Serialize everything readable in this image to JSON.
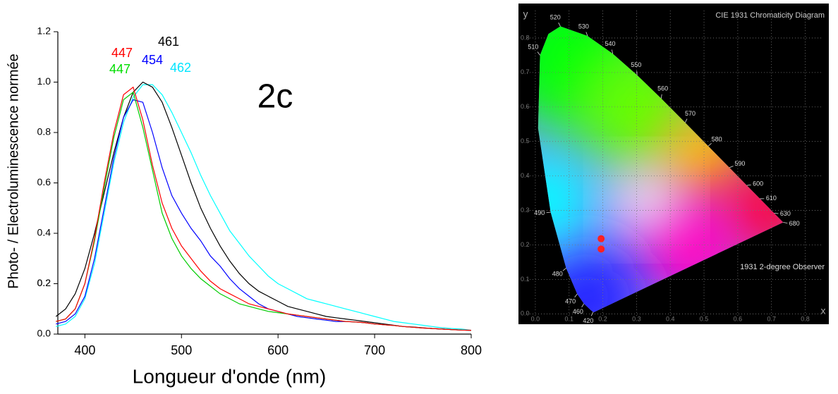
{
  "chart_data": [
    {
      "type": "line",
      "xlabel": "Longueur d'onde (nm)",
      "ylabel": "Photo- / Electroluminescence normée",
      "annotations": [
        {
          "text": "2c",
          "color": "#000000"
        },
        {
          "text": "447",
          "color": "#ff0000"
        },
        {
          "text": "447",
          "color": "#00dd00"
        },
        {
          "text": "454",
          "color": "#0000ff"
        },
        {
          "text": "461",
          "color": "#000000"
        },
        {
          "text": "462",
          "color": "#00e5ff"
        }
      ],
      "x": [
        370,
        380,
        390,
        400,
        410,
        420,
        430,
        440,
        450,
        460,
        470,
        480,
        490,
        500,
        510,
        520,
        530,
        540,
        550,
        560,
        570,
        580,
        590,
        600,
        610,
        620,
        630,
        640,
        650,
        660,
        670,
        680,
        690,
        700,
        710,
        720,
        730,
        740,
        750,
        760,
        770,
        780,
        790,
        800
      ],
      "series": [
        {
          "color": "#00ffff",
          "values": [
            0.03,
            0.04,
            0.07,
            0.14,
            0.28,
            0.48,
            0.68,
            0.84,
            0.94,
            0.99,
            0.99,
            0.95,
            0.88,
            0.8,
            0.72,
            0.63,
            0.55,
            0.48,
            0.41,
            0.36,
            0.31,
            0.27,
            0.23,
            0.2,
            0.18,
            0.16,
            0.14,
            0.13,
            0.12,
            0.11,
            0.1,
            0.09,
            0.08,
            0.07,
            0.06,
            0.05,
            0.045,
            0.04,
            0.035,
            0.03,
            0.025,
            0.022,
            0.02,
            0.015
          ]
        },
        {
          "color": "#000000",
          "values": [
            0.07,
            0.1,
            0.16,
            0.26,
            0.4,
            0.56,
            0.72,
            0.86,
            0.96,
            1.0,
            0.98,
            0.92,
            0.82,
            0.71,
            0.6,
            0.5,
            0.42,
            0.35,
            0.29,
            0.24,
            0.2,
            0.17,
            0.15,
            0.13,
            0.11,
            0.1,
            0.09,
            0.08,
            0.07,
            0.065,
            0.06,
            0.055,
            0.05,
            0.045,
            0.04,
            0.035,
            0.03,
            0.028,
            0.025,
            0.022,
            0.02,
            0.018,
            0.016,
            0.015
          ]
        },
        {
          "color": "#0000ff",
          "values": [
            0.04,
            0.05,
            0.08,
            0.15,
            0.3,
            0.5,
            0.7,
            0.86,
            0.93,
            0.92,
            0.8,
            0.66,
            0.55,
            0.48,
            0.42,
            0.37,
            0.31,
            0.27,
            0.22,
            0.18,
            0.15,
            0.12,
            0.1,
            0.09,
            0.08,
            0.07,
            0.065,
            0.06,
            0.055,
            0.05,
            0.05,
            0.048,
            0.045,
            0.04,
            0.037,
            0.034,
            0.03,
            0.027,
            0.024,
            0.022,
            0.02,
            0.018,
            0.016,
            0.015
          ]
        },
        {
          "color": "#00cc00",
          "values": [
            0.05,
            0.06,
            0.1,
            0.2,
            0.37,
            0.58,
            0.78,
            0.93,
            0.96,
            0.82,
            0.65,
            0.48,
            0.38,
            0.31,
            0.26,
            0.22,
            0.19,
            0.16,
            0.14,
            0.12,
            0.11,
            0.1,
            0.09,
            0.085,
            0.08,
            0.075,
            0.07,
            0.065,
            0.06,
            0.055,
            0.05,
            0.048,
            0.045,
            0.04,
            0.037,
            0.034,
            0.03,
            0.027,
            0.024,
            0.022,
            0.02,
            0.018,
            0.016,
            0.015
          ]
        },
        {
          "color": "#ff0000",
          "values": [
            0.05,
            0.06,
            0.1,
            0.2,
            0.38,
            0.6,
            0.8,
            0.95,
            0.98,
            0.85,
            0.67,
            0.52,
            0.42,
            0.35,
            0.3,
            0.25,
            0.21,
            0.18,
            0.16,
            0.14,
            0.12,
            0.11,
            0.1,
            0.09,
            0.08,
            0.075,
            0.07,
            0.065,
            0.06,
            0.055,
            0.05,
            0.048,
            0.045,
            0.04,
            0.037,
            0.034,
            0.03,
            0.027,
            0.024,
            0.022,
            0.02,
            0.018,
            0.016,
            0.015
          ]
        }
      ],
      "xlim": [
        372,
        800
      ],
      "xticks": [
        400,
        500,
        600,
        700,
        800
      ],
      "ylim": [
        0,
        1.2
      ],
      "yticks": [
        {
          "value": 0,
          "label": "0.0"
        },
        0.2,
        0.4,
        0.6,
        0.8,
        {
          "value": 1,
          "label": "1.0"
        },
        0.2,
        1.2
      ]
    },
    {
      "type": "cie",
      "title": "CIE 1931 Chromaticity Diagram",
      "subtitle": "1931 2-degree Observer",
      "xlabel": "x",
      "ylabel": "y",
      "wavelength_labels": [
        "420",
        "460",
        "470",
        "480",
        "490",
        "510",
        "520",
        "530",
        "540",
        "550",
        "560",
        "570",
        "580",
        "590",
        "600",
        "610",
        "630",
        "680"
      ],
      "xlim": [
        -0.05,
        0.87
      ],
      "ylim": [
        -0.03,
        0.9
      ],
      "xticks": [
        {
          "value": 0,
          "label": "0.0"
        },
        0.1,
        0.2,
        0.3,
        0.4,
        0.5,
        0.6,
        0.7,
        0.8
      ],
      "yticks": [
        {
          "value": 0,
          "label": "0.0"
        },
        0.1,
        0.2,
        0.3,
        0.4,
        0.5,
        0.6,
        0.7,
        0.8
      ],
      "points": {
        "color": "#ff2020",
        "x": [
          0.195,
          0.195
        ],
        "y": [
          0.218,
          0.188
        ]
      }
    }
  ]
}
